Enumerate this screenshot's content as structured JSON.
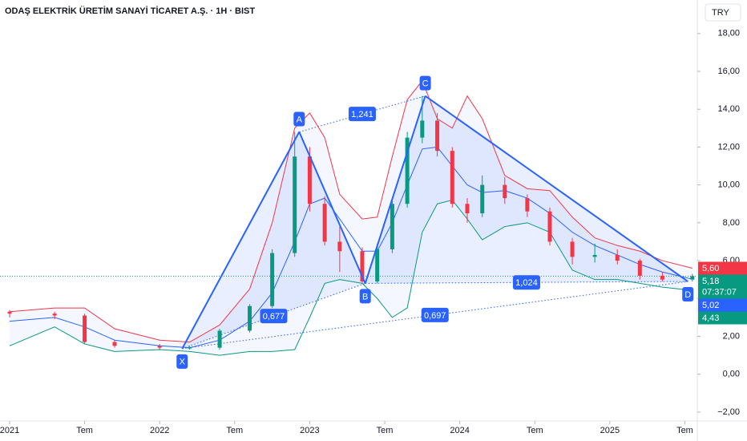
{
  "chart_data": {
    "type": "candlestick",
    "title": "ODAŞ ELEKTRİK ÜRETİM SANAYİ TİCARET A.Ş. · 1H · BIST",
    "currency_button": "TRY",
    "x": [
      2021.0,
      2021.3,
      2021.5,
      2021.7,
      2022.0,
      2022.2,
      2022.4,
      2022.6,
      2022.75,
      2022.9,
      2023.0,
      2023.1,
      2023.2,
      2023.35,
      2023.45,
      2023.55,
      2023.65,
      2023.75,
      2023.85,
      2023.95,
      2024.05,
      2024.15,
      2024.3,
      2024.45,
      2024.6,
      2024.75,
      2024.9,
      2025.05,
      2025.2,
      2025.35,
      2025.55
    ],
    "open": [
      3.3,
      3.2,
      3.1,
      1.7,
      1.5,
      1.4,
      1.4,
      2.3,
      3.6,
      6.4,
      11.5,
      9.0,
      7.0,
      6.5,
      4.9,
      6.6,
      9.0,
      12.5,
      13.4,
      11.8,
      9.0,
      8.5,
      10.0,
      9.3,
      8.6,
      7.0,
      6.2,
      6.3,
      6.0,
      5.2,
      5.0
    ],
    "high": [
      3.4,
      3.3,
      3.2,
      1.8,
      1.6,
      1.5,
      2.4,
      3.7,
      6.6,
      12.8,
      12.0,
      9.4,
      7.8,
      6.7,
      6.9,
      9.2,
      12.8,
      14.7,
      13.8,
      12.0,
      9.3,
      10.5,
      10.4,
      9.5,
      8.8,
      7.2,
      6.9,
      6.6,
      6.1,
      5.4,
      5.3
    ],
    "low": [
      3.0,
      2.9,
      1.6,
      1.4,
      1.3,
      1.3,
      1.3,
      2.2,
      3.5,
      6.2,
      8.6,
      6.8,
      5.4,
      4.8,
      4.8,
      6.4,
      8.8,
      12.2,
      11.5,
      8.8,
      8.0,
      8.3,
      9.0,
      8.3,
      6.8,
      5.8,
      5.9,
      5.8,
      5.0,
      4.9,
      4.9
    ],
    "close": [
      3.2,
      3.1,
      1.7,
      1.5,
      1.4,
      1.4,
      2.3,
      3.6,
      6.4,
      11.5,
      9.0,
      7.0,
      6.5,
      4.9,
      6.6,
      9.0,
      12.5,
      13.4,
      11.8,
      9.0,
      8.5,
      10.0,
      9.3,
      8.6,
      7.0,
      6.2,
      6.3,
      6.0,
      5.2,
      5.0,
      5.18
    ],
    "up_color": "#089981",
    "down_color": "#f23645",
    "bands": [
      {
        "color": "#f23645",
        "values": [
          3.3,
          3.5,
          3.5,
          2.4,
          1.8,
          1.7,
          2.6,
          4.5,
          8.0,
          13.0,
          13.8,
          12.5,
          9.5,
          8.2,
          8.3,
          11.5,
          14.5,
          15.5,
          13.5,
          13.0,
          14.7,
          13.5,
          10.5,
          9.8,
          9.7,
          8.3,
          7.2,
          6.8,
          6.5,
          6.0,
          5.6
        ]
      },
      {
        "color": "#2962ff",
        "values": [
          2.8,
          3.0,
          2.5,
          1.8,
          1.5,
          1.4,
          1.8,
          2.8,
          4.3,
          7.0,
          9.0,
          9.3,
          8.2,
          6.5,
          6.5,
          8.0,
          10.0,
          11.9,
          12.0,
          11.0,
          10.0,
          9.6,
          9.7,
          9.3,
          8.5,
          7.5,
          6.8,
          6.3,
          5.8,
          5.4,
          5.02
        ]
      },
      {
        "color": "#089981",
        "values": [
          1.5,
          2.5,
          1.6,
          1.2,
          1.3,
          1.2,
          1.0,
          1.2,
          1.2,
          1.3,
          3.0,
          4.8,
          5.0,
          4.8,
          4.0,
          3.0,
          3.5,
          7.5,
          9.0,
          9.2,
          8.2,
          7.1,
          7.8,
          8.0,
          7.5,
          5.5,
          5.0,
          5.0,
          4.8,
          4.6,
          4.43
        ]
      }
    ],
    "pattern": {
      "color": "#2962ff",
      "points": [
        {
          "label": "X",
          "x": 2022.15,
          "value": 1.35
        },
        {
          "label": "A",
          "x": 2022.93,
          "value": 12.8
        },
        {
          "label": "B",
          "x": 2023.37,
          "value": 4.8
        },
        {
          "label": "C",
          "x": 2023.77,
          "value": 14.7
        },
        {
          "label": "D",
          "x": 2025.52,
          "value": 4.9
        }
      ],
      "ratios": [
        {
          "value": 0.677,
          "label": "0,677"
        },
        {
          "value": 1.241,
          "label": "1,241"
        },
        {
          "value": 0.697,
          "label": "0,697"
        },
        {
          "value": 1.024,
          "label": "1,024"
        }
      ]
    },
    "price_labels": [
      {
        "value": 5.6,
        "label": "5,60",
        "color": "#f23645"
      },
      {
        "value": 5.18,
        "label": "5,18",
        "countdown": "07:37:07",
        "color": "#089981"
      },
      {
        "value": 5.02,
        "label": "5,02",
        "color": "#2962ff"
      },
      {
        "value": 4.43,
        "label": "4,43",
        "color": "#089981"
      }
    ],
    "xlim": [
      2020.936,
      2025.583
    ],
    "xticks": [
      {
        "value": 2021.0,
        "label": "2021"
      },
      {
        "value": 2021.5,
        "label": "Tem"
      },
      {
        "value": 2022.0,
        "label": "2022"
      },
      {
        "value": 2022.5,
        "label": "Tem"
      },
      {
        "value": 2023.0,
        "label": "2023"
      },
      {
        "value": 2023.5,
        "label": "Tem"
      },
      {
        "value": 2024.0,
        "label": "2024"
      },
      {
        "value": 2024.5,
        "label": "Tem"
      },
      {
        "value": 2025.0,
        "label": "2025"
      },
      {
        "value": 2025.5,
        "label": "Tem"
      }
    ],
    "ylim": [
      -2.47,
      19.77
    ],
    "yticks": [
      {
        "value": -2,
        "label": "−2,00"
      },
      {
        "value": 0,
        "label": "0,00"
      },
      {
        "value": 2,
        "label": "2,00"
      },
      {
        "value": 4,
        "label": "4,00"
      },
      {
        "value": 6,
        "label": "6,00"
      },
      {
        "value": 8,
        "label": "8,00"
      },
      {
        "value": 10,
        "label": "10,00"
      },
      {
        "value": 12,
        "label": "12,00"
      },
      {
        "value": 14,
        "label": "14,00"
      },
      {
        "value": 16,
        "label": "16,00"
      },
      {
        "value": 18,
        "label": "18,00"
      }
    ]
  }
}
